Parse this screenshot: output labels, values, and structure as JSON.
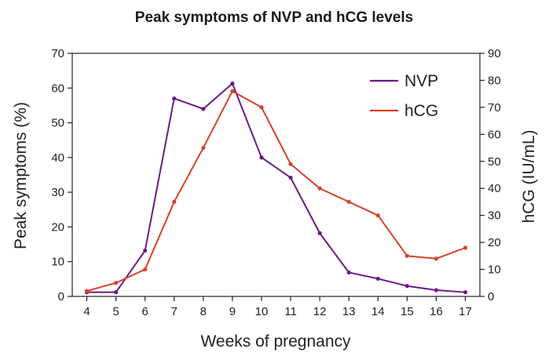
{
  "chart_data": {
    "type": "line",
    "title": "Peak symptoms of NVP and hCG levels",
    "xlabel": "Weeks of pregnancy",
    "ylabel": "Peak symptoms (%)",
    "y2label": "hCG (IU/mL)",
    "x": [
      4,
      5,
      6,
      7,
      8,
      9,
      10,
      11,
      12,
      13,
      14,
      15,
      16,
      17
    ],
    "xlim": [
      3.5,
      17.5
    ],
    "ylim": [
      0,
      70
    ],
    "y2lim": [
      0,
      90
    ],
    "yticks": [
      0,
      10,
      20,
      30,
      40,
      50,
      60,
      70
    ],
    "y2ticks": [
      0,
      10,
      20,
      30,
      40,
      50,
      60,
      70,
      80,
      90
    ],
    "legend_position": "top-right",
    "grid": false,
    "series": [
      {
        "name": "NVP",
        "axis": "left",
        "color": "#6a1b86",
        "values": [
          1.2,
          1.2,
          13.2,
          57,
          54,
          61.3,
          40,
          34.2,
          18.2,
          6.9,
          5.1,
          3,
          1.8,
          1.2
        ]
      },
      {
        "name": "hCG",
        "axis": "right",
        "color": "#d9402a",
        "values": [
          2,
          5,
          10,
          35,
          55,
          76,
          70,
          49,
          40,
          35,
          30,
          15,
          14,
          18
        ]
      }
    ]
  }
}
